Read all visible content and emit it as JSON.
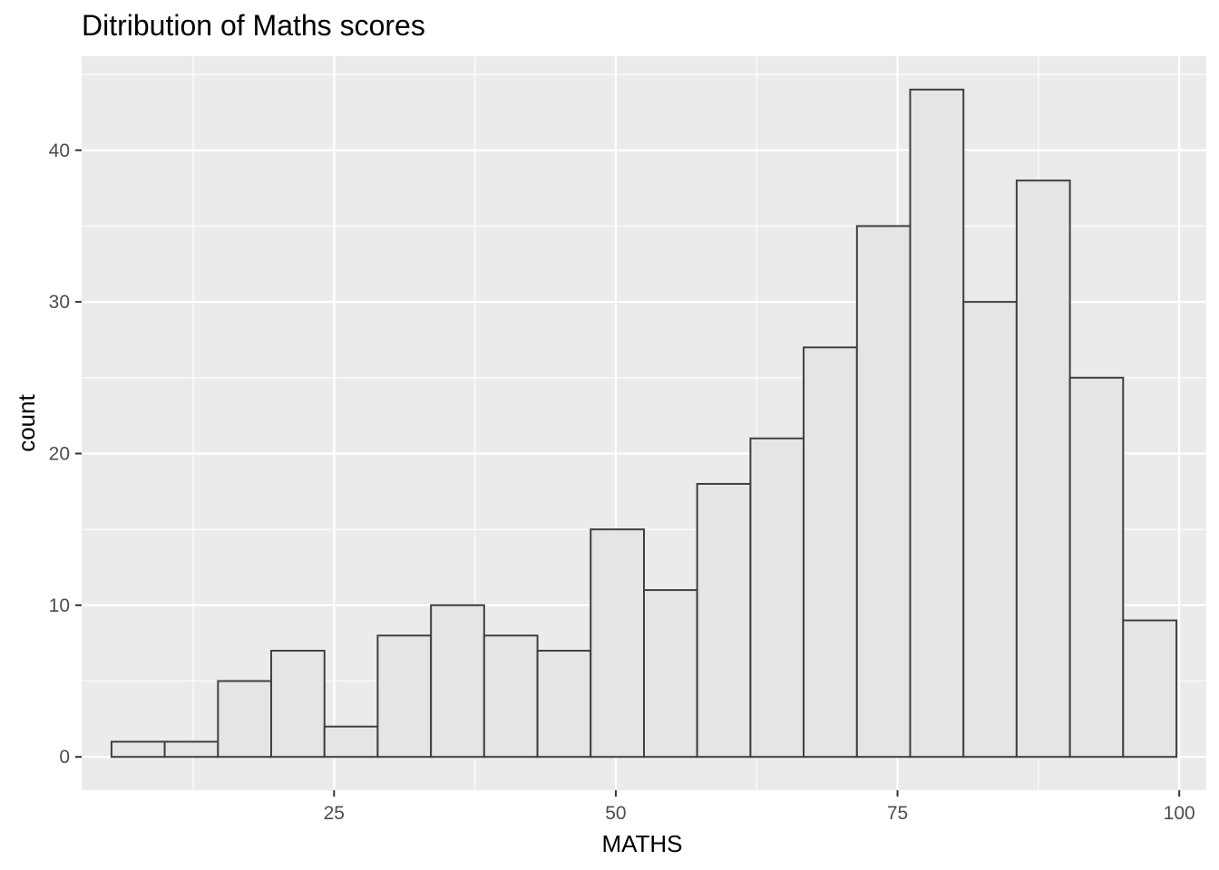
{
  "chart_data": {
    "type": "bar",
    "title": "Ditribution of Maths scores",
    "xlabel": "MATHS",
    "ylabel": "count",
    "xlim": [
      2.6,
      102.4
    ],
    "ylim": [
      -2.2,
      46.2
    ],
    "x_ticks": [
      25,
      50,
      75,
      100
    ],
    "y_ticks": [
      0,
      10,
      20,
      30,
      40
    ],
    "bin_edges": [
      5.25,
      9.97,
      14.7,
      19.42,
      24.15,
      28.87,
      33.6,
      38.32,
      43.05,
      47.77,
      52.5,
      57.22,
      61.95,
      66.67,
      71.4,
      76.12,
      80.85,
      85.57,
      90.3,
      95.02,
      99.75
    ],
    "values": [
      1,
      1,
      5,
      7,
      2,
      8,
      10,
      8,
      7,
      15,
      11,
      18,
      21,
      27,
      35,
      44,
      30,
      38,
      25,
      9
    ],
    "colors": {
      "panel": "#EBEBEB",
      "grid": "#FFFFFF",
      "bar_fill": "#E5E5E5",
      "bar_stroke": "#404040",
      "tick_text": "#4D4D4D",
      "tick_mark": "#333333"
    }
  }
}
